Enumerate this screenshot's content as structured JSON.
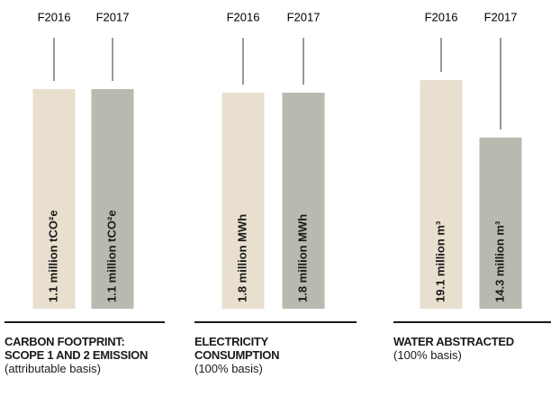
{
  "chart_data": [
    {
      "type": "bar",
      "title": "CARBON FOOTPRINT: SCOPE 1 AND 2 EMISSION",
      "subtitle": "(attributable basis)",
      "categories": [
        "F2016",
        "F2017"
      ],
      "values": [
        1.1,
        1.1
      ],
      "value_labels": [
        "1.1 million tCO²e",
        "1.1 million tCO²e"
      ],
      "colors": [
        "#e8dfcf",
        "#b9baaf"
      ]
    },
    {
      "type": "bar",
      "title": "ELECTRICITY CONSUMPTION",
      "subtitle": "(100% basis)",
      "categories": [
        "F2016",
        "F2017"
      ],
      "values": [
        1.8,
        1.8
      ],
      "value_labels": [
        "1.8 million MWh",
        "1.8 million MWh"
      ],
      "colors": [
        "#e8dfcf",
        "#b9baaf"
      ]
    },
    {
      "type": "bar",
      "title": "WATER ABSTRACTED",
      "subtitle": "(100% basis)",
      "categories": [
        "F2016",
        "F2017"
      ],
      "values": [
        19.1,
        14.3
      ],
      "value_labels": [
        "19.1 million m³",
        "14.3 million m³"
      ],
      "colors": [
        "#e8dfcf",
        "#b9baaf"
      ]
    }
  ]
}
